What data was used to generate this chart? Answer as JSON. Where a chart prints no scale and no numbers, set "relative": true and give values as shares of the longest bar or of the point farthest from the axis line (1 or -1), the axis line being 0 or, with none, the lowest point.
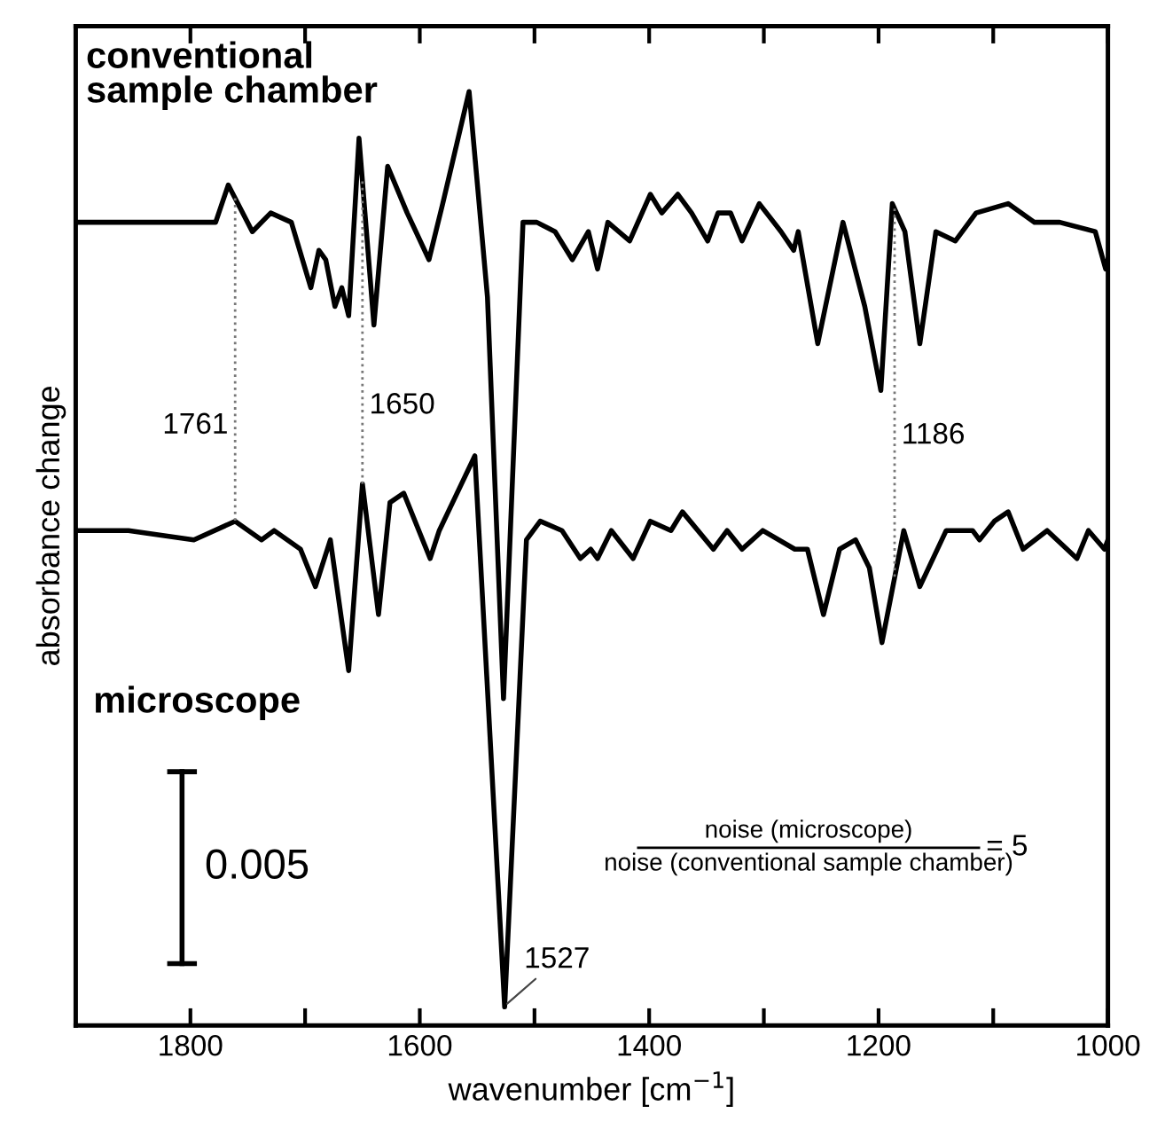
{
  "chart_data": {
    "type": "line",
    "relative": true,
    "xlabel": "wavenumber [cm$^{−1}$]",
    "ylabel": "absorbance change",
    "xlim": [
      1900,
      1000
    ],
    "xticks": [
      1800,
      {
        "value": 1700,
        "label": null
      },
      1600,
      {
        "value": 1500,
        "label": null
      },
      1400,
      {
        "value": 1300,
        "label": null
      },
      1200,
      {
        "value": 1100,
        "label": null
      },
      1000
    ],
    "grid": false,
    "legend": "top left",
    "ref_lines": [
      {
        "axis": "x",
        "value": 1761,
        "label": "1761",
        "color": "#777777",
        "line_style": "dotted"
      },
      {
        "axis": "x",
        "value": 1650,
        "label": "1650",
        "color": "#777777",
        "line_style": "dotted"
      },
      {
        "axis": "x",
        "value": 1186,
        "label": "1186",
        "color": "#777777",
        "line_style": "dotted"
      }
    ],
    "marker": "none",
    "line_style": "solid",
    "series": [
      {
        "name": "conventional sample chamber",
        "color": "#000000",
        "x": [
          1900,
          1778,
          1767,
          1746,
          1730,
          1712,
          1695,
          1688,
          1682,
          1674,
          1668,
          1662,
          1653,
          1640,
          1628,
          1611,
          1592,
          1580,
          1557,
          1541,
          1527,
          1510,
          1498,
          1482,
          1467,
          1453,
          1445,
          1436,
          1417,
          1399,
          1389,
          1375,
          1363,
          1349,
          1340,
          1329,
          1319,
          1304,
          1285,
          1274,
          1270,
          1253,
          1231,
          1212,
          1198,
          1188,
          1177,
          1164,
          1150,
          1133,
          1115,
          1087,
          1064,
          1042,
          1011,
          1002,
          1000
        ],
        "values": [
          0.86,
          0.86,
          0.9,
          0.85,
          0.87,
          0.86,
          0.79,
          0.83,
          0.82,
          0.77,
          0.79,
          0.76,
          0.95,
          0.75,
          0.92,
          0.87,
          0.82,
          0.88,
          1.0,
          0.78,
          0.35,
          0.86,
          0.86,
          0.85,
          0.82,
          0.85,
          0.81,
          0.86,
          0.84,
          0.89,
          0.87,
          0.89,
          0.87,
          0.84,
          0.87,
          0.87,
          0.84,
          0.88,
          0.85,
          0.83,
          0.85,
          0.73,
          0.86,
          0.77,
          0.68,
          0.88,
          0.85,
          0.73,
          0.85,
          0.84,
          0.87,
          0.88,
          0.86,
          0.86,
          0.85,
          0.81,
          0.82
        ]
      },
      {
        "name": "microscope",
        "color": "#000000",
        "x": [
          1900,
          1854,
          1797,
          1761,
          1738,
          1727,
          1704,
          1691,
          1678,
          1662,
          1650,
          1636,
          1626,
          1614,
          1591,
          1583,
          1552,
          1526,
          1507,
          1495,
          1476,
          1460,
          1451,
          1445,
          1433,
          1414,
          1399,
          1381,
          1371,
          1344,
          1332,
          1319,
          1301,
          1273,
          1262,
          1248,
          1234,
          1220,
          1208,
          1197,
          1178,
          1164,
          1141,
          1118,
          1112,
          1099,
          1087,
          1074,
          1053,
          1027,
          1017,
          1003,
          1000
        ],
        "values": [
          0.53,
          0.53,
          0.52,
          0.54,
          0.52,
          0.53,
          0.51,
          0.47,
          0.52,
          0.38,
          0.58,
          0.44,
          0.56,
          0.57,
          0.5,
          0.53,
          0.61,
          0.02,
          0.52,
          0.54,
          0.53,
          0.5,
          0.51,
          0.5,
          0.53,
          0.5,
          0.54,
          0.53,
          0.55,
          0.51,
          0.53,
          0.51,
          0.53,
          0.51,
          0.51,
          0.44,
          0.51,
          0.52,
          0.49,
          0.41,
          0.53,
          0.47,
          0.53,
          0.53,
          0.52,
          0.54,
          0.55,
          0.51,
          0.53,
          0.5,
          0.53,
          0.51,
          0.52
        ]
      }
    ],
    "annotations": [
      {
        "text": "1527",
        "x": 1527,
        "y": 0.02
      },
      "0.005",
      "noise (microscope)",
      "noise (conventional sample chamber)",
      "= 5"
    ]
  }
}
